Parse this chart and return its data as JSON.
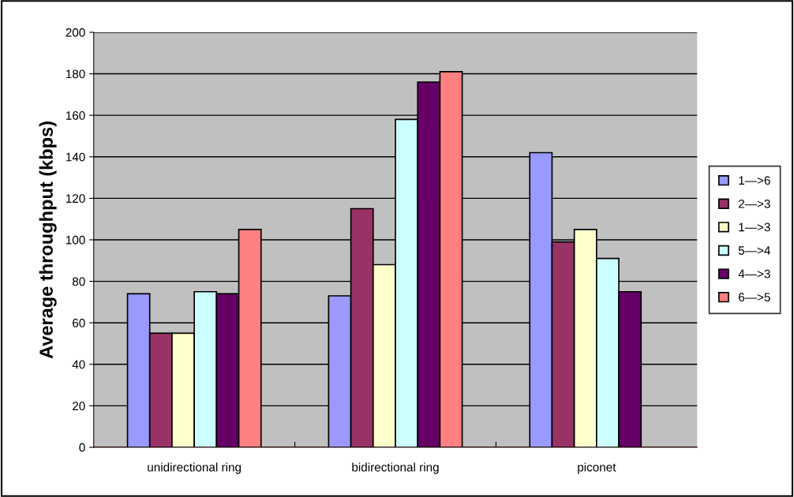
{
  "chart_data": {
    "type": "bar",
    "ylabel": "Average throughput (kbps)",
    "categories": [
      "unidirectional ring",
      "bidirectional ring",
      "piconet"
    ],
    "series": [
      {
        "name": "1—>6",
        "color": "#9999ff",
        "values": [
          74,
          73,
          142
        ]
      },
      {
        "name": "2—>3",
        "color": "#993366",
        "values": [
          55,
          115,
          99
        ]
      },
      {
        "name": "1—>3",
        "color": "#ffffcc",
        "values": [
          55,
          88,
          105
        ]
      },
      {
        "name": "5—>4",
        "color": "#ccffff",
        "values": [
          75,
          158,
          91
        ]
      },
      {
        "name": "4—>3",
        "color": "#660066",
        "values": [
          74,
          176,
          75
        ]
      },
      {
        "name": "6—>5",
        "color": "#ff8080",
        "values": [
          105,
          181,
          null
        ]
      }
    ],
    "ylim": [
      0,
      200
    ],
    "yticks": [
      0,
      20,
      40,
      60,
      80,
      100,
      120,
      140,
      160,
      180,
      200
    ],
    "grid": "y",
    "legend": "right"
  }
}
